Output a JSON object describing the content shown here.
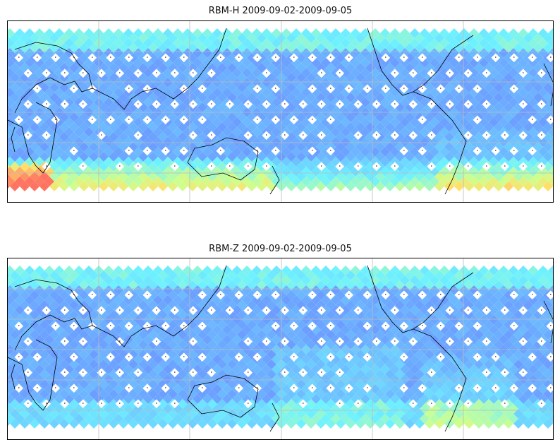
{
  "maps": [
    {
      "title": "RBM-H 2009-09-02-2009-09-05",
      "hot_regions": "south-pacific-high-latitudes"
    },
    {
      "title": "RBM-Z 2009-09-02-2009-09-05",
      "hot_regions": "south-america-south-atlantic"
    }
  ],
  "colormap": {
    "low": "#5a6bff",
    "mid": "#5ef0ff",
    "high": "#ff6a50"
  },
  "gridlines": true
}
